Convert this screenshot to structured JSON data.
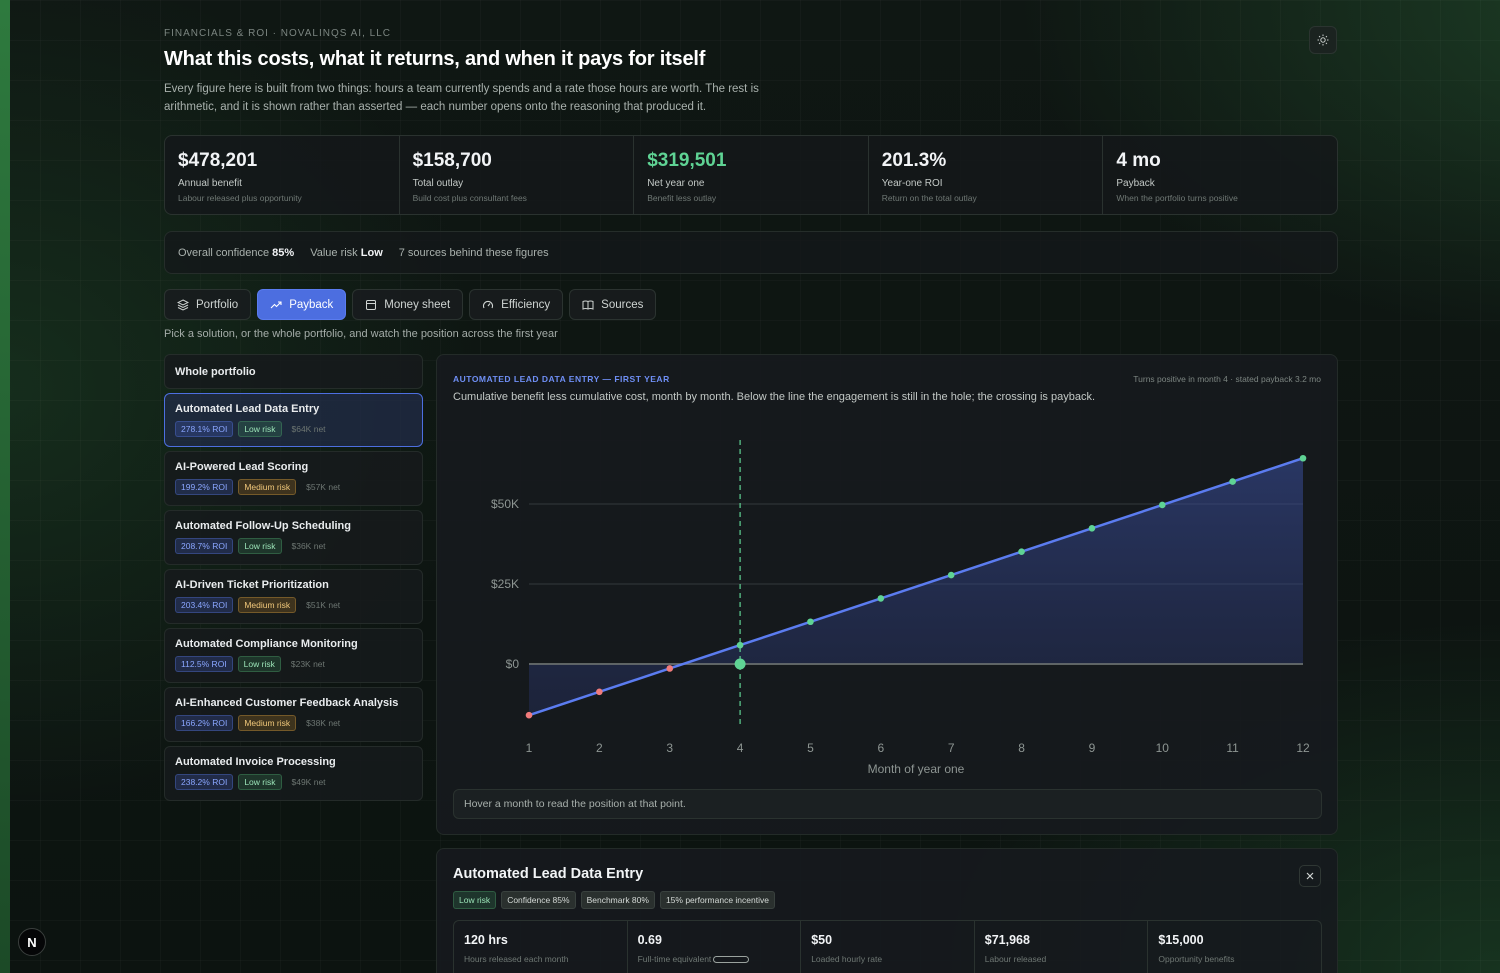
{
  "header": {
    "eyebrow": "FINANCIALS & ROI · NOVALINQS AI, LLC",
    "title": "What this costs, what it returns, and when it pays for itself",
    "intro": "Every figure here is built from two things: hours a team currently spends and a rate those hours are worth. The rest is arithmetic, and it is shown rather than asserted — each number opens onto the reasoning that produced it."
  },
  "kpis": [
    {
      "value": "$478,201",
      "label": "Annual benefit",
      "sub": "Labour released plus opportunity"
    },
    {
      "value": "$158,700",
      "label": "Total outlay",
      "sub": "Build cost plus consultant fees"
    },
    {
      "value": "$319,501",
      "label": "Net year one",
      "sub": "Benefit less outlay"
    },
    {
      "value": "201.3%",
      "label": "Year-one ROI",
      "sub": "Return on the total outlay"
    },
    {
      "value": "4 mo",
      "label": "Payback",
      "sub": "When the portfolio turns positive"
    }
  ],
  "confidence": {
    "overall_label": "Overall confidence",
    "overall_value": "85%",
    "risk_label": "Value risk",
    "risk_value": "Low",
    "sources": "7 sources behind these figures"
  },
  "tabs": [
    {
      "label": "Portfolio",
      "icon": "layers-icon"
    },
    {
      "label": "Payback",
      "icon": "trending-up-icon"
    },
    {
      "label": "Money sheet",
      "icon": "sheet-icon"
    },
    {
      "label": "Efficiency",
      "icon": "gauge-icon"
    },
    {
      "label": "Sources",
      "icon": "book-icon"
    }
  ],
  "hint": "Pick a solution, or the whole portfolio, and watch the position across the first year",
  "solutions": {
    "whole": "Whole portfolio",
    "items": [
      {
        "name": "Automated Lead Data Entry",
        "roi": "278.1% ROI",
        "risk": "Low risk",
        "net": "$64K net"
      },
      {
        "name": "AI-Powered Lead Scoring",
        "roi": "199.2% ROI",
        "risk": "Medium risk",
        "net": "$57K net"
      },
      {
        "name": "Automated Follow-Up Scheduling",
        "roi": "208.7% ROI",
        "risk": "Low risk",
        "net": "$36K net"
      },
      {
        "name": "AI-Driven Ticket Prioritization",
        "roi": "203.4% ROI",
        "risk": "Medium risk",
        "net": "$51K net"
      },
      {
        "name": "Automated Compliance Monitoring",
        "roi": "112.5% ROI",
        "risk": "Low risk",
        "net": "$23K net"
      },
      {
        "name": "AI-Enhanced Customer Feedback Analysis",
        "roi": "166.2% ROI",
        "risk": "Medium risk",
        "net": "$38K net"
      },
      {
        "name": "Automated Invoice Processing",
        "roi": "238.2% ROI",
        "risk": "Low risk",
        "net": "$49K net"
      }
    ]
  },
  "chart_card": {
    "eyebrow": "AUTOMATED LEAD DATA ENTRY — FIRST YEAR",
    "note": "Turns positive in month 4 · stated payback 3.2 mo",
    "description": "Cumulative benefit less cumulative cost, month by month. Below the line the engagement is still in the hole; the crossing is payback.",
    "hover": "Hover a month to read the position at that point."
  },
  "chart_data": {
    "type": "area",
    "x": [
      1,
      2,
      3,
      4,
      5,
      6,
      7,
      8,
      9,
      10,
      11,
      12
    ],
    "xlabel": "Month of year one",
    "ylabel": "",
    "y_ticks": [
      0,
      25000,
      50000
    ],
    "y_tick_labels": [
      "$0",
      "$25K",
      "$50K"
    ],
    "ylim": [
      -20000,
      70000
    ],
    "series": [
      {
        "values": [
          -16000,
          -8700,
          -1400,
          5900,
          13200,
          20500,
          27800,
          35100,
          42400,
          49700,
          57000,
          64300
        ]
      }
    ],
    "payback_month": 4,
    "colors": {
      "line": "#5b7cf0",
      "positive": "#5fd394",
      "negative": "#f07b7b"
    }
  },
  "detail": {
    "title": "Automated Lead Data Entry",
    "tags": [
      "Low risk",
      "Confidence 85%",
      "Benchmark 80%",
      "15% performance incentive"
    ],
    "stats": [
      {
        "value": "120 hrs",
        "label": "Hours released each month"
      },
      {
        "value": "0.69",
        "label": "Full-time equivalent"
      },
      {
        "value": "$50",
        "label": "Loaded hourly rate"
      },
      {
        "value": "$71,968",
        "label": "Labour released"
      },
      {
        "value": "$15,000",
        "label": "Opportunity benefits"
      }
    ]
  },
  "badge": "N"
}
